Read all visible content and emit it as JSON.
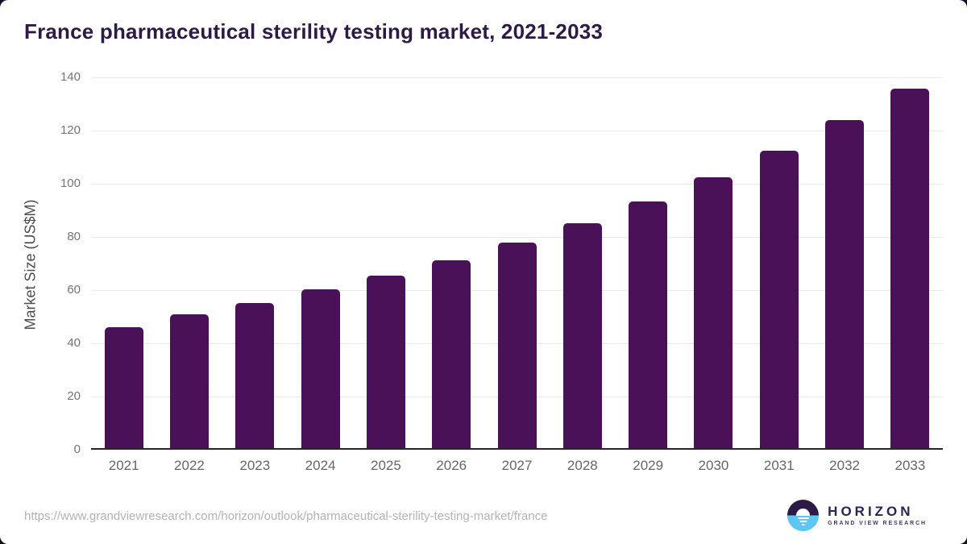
{
  "title": "France pharmaceutical sterility testing market, 2021-2033",
  "chart_data": {
    "type": "bar",
    "title": "France pharmaceutical sterility testing market, 2021-2033",
    "categories": [
      "2021",
      "2022",
      "2023",
      "2024",
      "2025",
      "2026",
      "2027",
      "2028",
      "2029",
      "2030",
      "2031",
      "2032",
      "2033"
    ],
    "values": [
      45.4,
      50.2,
      54.7,
      59.7,
      64.9,
      70.7,
      77.3,
      84.6,
      92.7,
      101.8,
      111.9,
      123.2,
      135.3
    ],
    "xlabel": "",
    "ylabel": "Market Size (US$M)",
    "ylim": [
      0,
      140
    ],
    "yticks": [
      0,
      20,
      40,
      60,
      80,
      100,
      120,
      140
    ],
    "grid": true,
    "legend": "none",
    "bar_color": "#4a1158"
  },
  "colors": {
    "bar": "#4a1158",
    "title_text": "#2e1a47",
    "gridline": "#e9e9e9",
    "axis_line": "#262626",
    "tick_text": "#757575",
    "background": "#ffffff",
    "logo_purple": "#2e1a47",
    "logo_blue": "#5ec6f2"
  },
  "footer": {
    "source_url": "https://www.grandviewresearch.com/horizon/outlook/pharmaceutical-sterility-testing-market/france",
    "logo_name": "HORIZON",
    "logo_tagline": "GRAND VIEW RESEARCH"
  }
}
